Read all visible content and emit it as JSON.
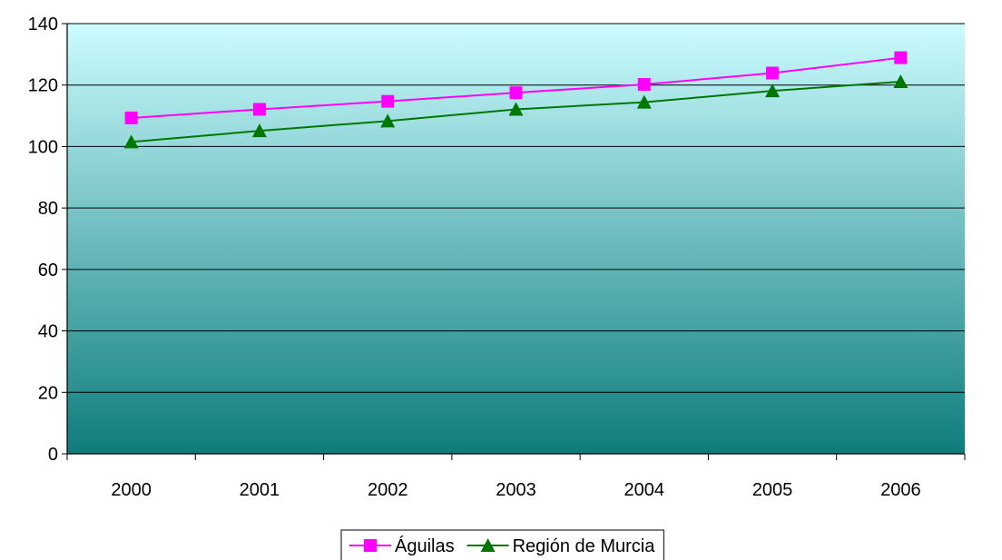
{
  "chart_data": {
    "type": "line",
    "title": "",
    "xlabel": "",
    "ylabel": "",
    "categories": [
      "2000",
      "2001",
      "2002",
      "2003",
      "2004",
      "2005",
      "2006"
    ],
    "ylim": [
      0,
      140
    ],
    "yticks": [
      "0",
      "20",
      "40",
      "60",
      "80",
      "100",
      "120",
      "140"
    ],
    "grid": true,
    "legend_position": "bottom",
    "series": [
      {
        "name": "Águilas",
        "values": [
          109.3,
          112.1,
          114.7,
          117.5,
          120.2,
          123.9,
          128.9
        ],
        "color": "#ff00ff",
        "marker": "square"
      },
      {
        "name": "Región de Murcia",
        "values": [
          101.5,
          105.1,
          108.3,
          112.1,
          114.4,
          118.1,
          121.1
        ],
        "color": "#007700",
        "marker": "triangle"
      }
    ],
    "plot_background": {
      "gradient_top": "#ccfcff",
      "gradient_bottom": "#0e7c7c"
    }
  }
}
